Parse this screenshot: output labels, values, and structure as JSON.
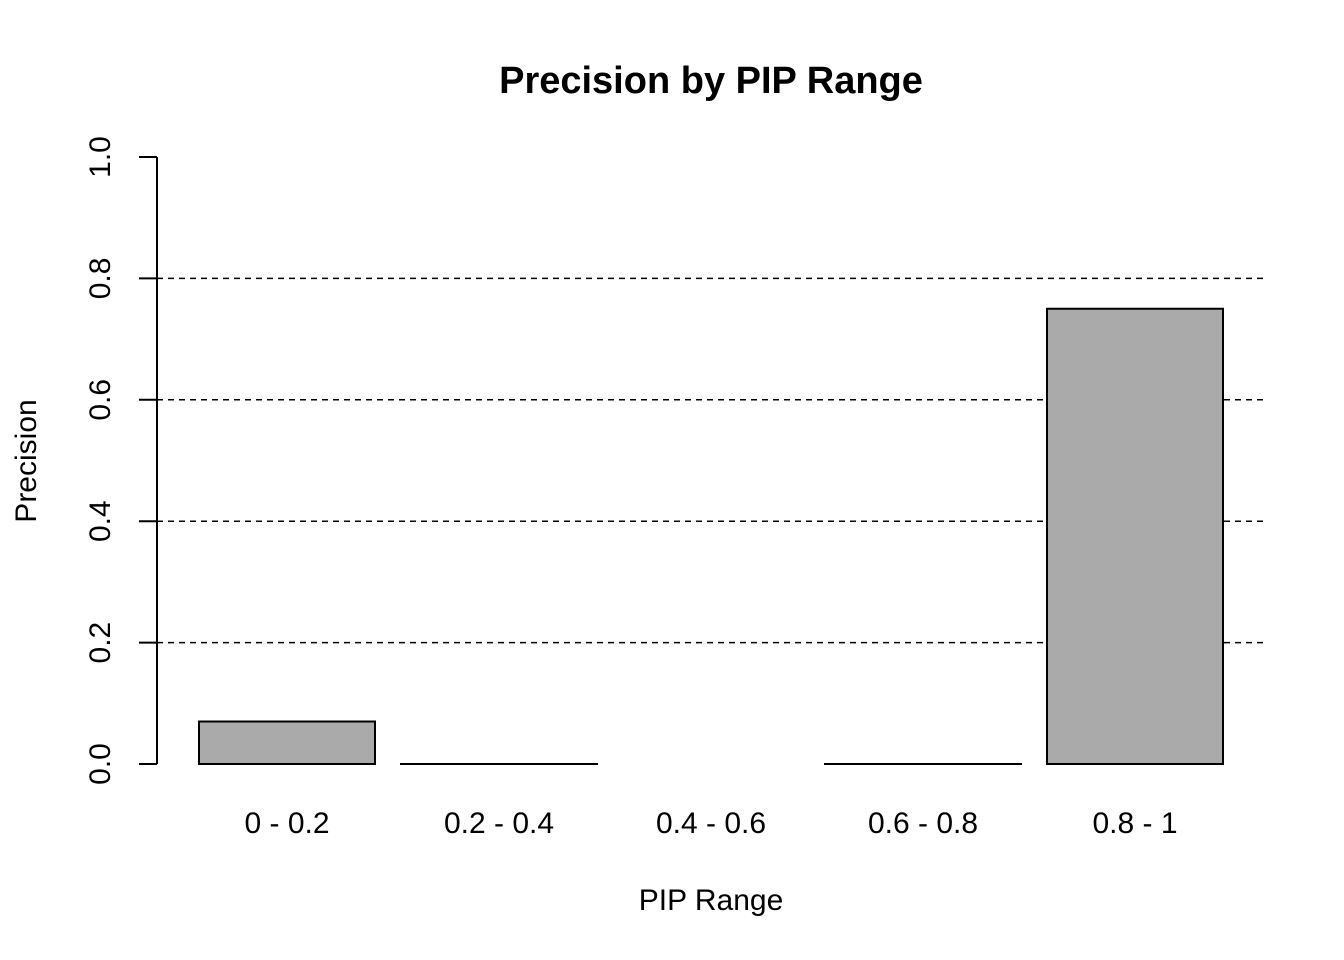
{
  "chart_data": {
    "type": "bar",
    "title": "Precision by PIP Range",
    "xlabel": "PIP Range",
    "ylabel": "Precision",
    "categories": [
      "0 - 0.2",
      "0.2 - 0.4",
      "0.4 - 0.6",
      "0.6 - 0.8",
      "0.8 - 1"
    ],
    "values": [
      0.07,
      0.0,
      null,
      0.0,
      0.75
    ],
    "ylim": [
      0,
      1
    ],
    "yticks": [
      "0.0",
      "0.2",
      "0.4",
      "0.6",
      "0.8",
      "1.0"
    ],
    "ytick_values": [
      0,
      0.2,
      0.4,
      0.6,
      0.8,
      1.0
    ],
    "gridlines": [
      0.2,
      0.4,
      0.6,
      0.8
    ],
    "grid": "horizontal dashed",
    "bar_color": "#aaaaaa",
    "legend": "none"
  }
}
